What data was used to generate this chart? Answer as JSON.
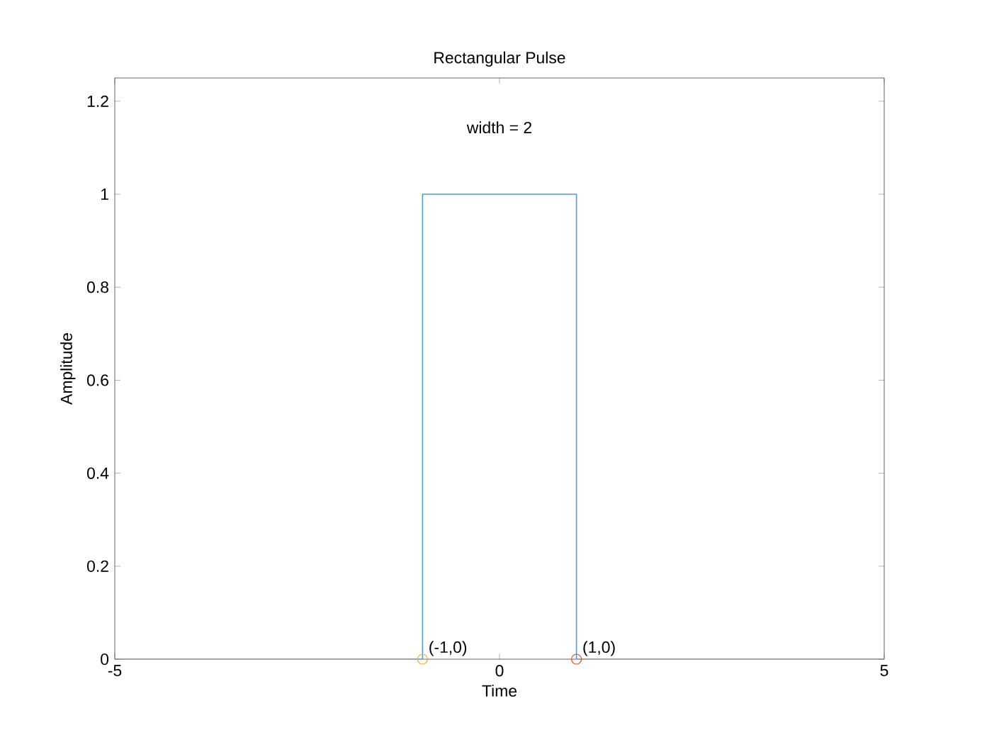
{
  "chart_data": {
    "type": "line",
    "title": "Rectangular Pulse",
    "xlabel": "Time",
    "ylabel": "Amplitude",
    "xlim": [
      -5,
      5
    ],
    "xticks": [
      -5,
      0,
      5
    ],
    "ylim": [
      0,
      1.25
    ],
    "yticks": [
      0,
      0.2,
      0.4,
      0.6,
      0.8,
      1,
      1.2
    ],
    "series": [
      {
        "color": "#4d9fdc",
        "x": [
          -5,
          -1,
          -1,
          1,
          1,
          5
        ],
        "values": [
          0,
          0,
          1,
          1,
          0,
          0
        ],
        "marker": "none"
      },
      {
        "type": "scatter",
        "color": "#edb120",
        "x": [
          -1
        ],
        "values": [
          0
        ],
        "marker": "circle"
      },
      {
        "type": "scatter",
        "color": "#d95319",
        "x": [
          1
        ],
        "values": [
          0
        ],
        "marker": "circle"
      }
    ],
    "annotations": [
      "width = 2",
      {
        "text": "(-1,0)",
        "x": -1,
        "y": 0
      },
      {
        "text": "(1,0)",
        "x": 1,
        "y": 0
      }
    ]
  }
}
